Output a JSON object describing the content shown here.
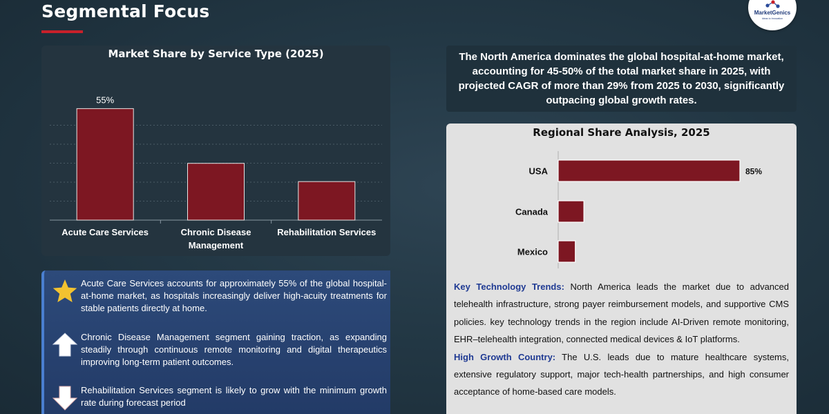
{
  "header": {
    "title": "Segmental Focus",
    "logo_text": "MarketGenics",
    "logo_tagline": "Ideas to Innovation"
  },
  "colors": {
    "accent_red": "#c8202a",
    "bar_fill": "#7d1722",
    "label_blue": "#1f3a93"
  },
  "service_chart": {
    "title": "Market Share by Service Type (2025)",
    "chart_data": {
      "type": "bar",
      "title": "Market Share by Service Type (2025)",
      "categories": [
        "Acute Care Services",
        "Chronic Disease Management",
        "Rehabilitation Services"
      ],
      "category_lines": [
        [
          "Acute Care Services"
        ],
        [
          "Chronic Disease",
          "Management"
        ],
        [
          "Rehabilitation Services"
        ]
      ],
      "values": [
        55,
        28,
        19
      ],
      "data_labels": [
        "55%",
        "",
        ""
      ],
      "ylim": [
        0,
        65
      ],
      "grid": true
    }
  },
  "bullets": [
    {
      "icon": "star-icon",
      "text": "Acute Care Services accounts for approximately 55% of the global hospital-at-home market, as hospitals increasingly deliver high-acuity treatments for stable patients directly at home."
    },
    {
      "icon": "arrow-up-icon",
      "text": "Chronic Disease Management segment gaining traction, as expanding steadily through continuous remote monitoring and digital therapeutics improving long-term patient outcomes."
    },
    {
      "icon": "arrow-down-icon",
      "text": "Rehabilitation Services segment is likely to grow with the minimum growth rate during forecast period"
    }
  ],
  "summary": {
    "text": "The North America dominates the global hospital-at-home market, accounting for 45-50% of the total market share in 2025, with projected CAGR of more than 29% from 2025 to 2030, significantly outpacing global growth rates."
  },
  "regional_chart": {
    "title": "Regional Share Analysis, 2025",
    "chart_data": {
      "type": "bar",
      "orientation": "horizontal",
      "title": "Regional Share Analysis, 2025",
      "categories": [
        "USA",
        "Canada",
        "Mexico"
      ],
      "values": [
        85,
        12,
        8
      ],
      "data_labels": [
        "85%",
        "",
        ""
      ],
      "xlim": [
        0,
        100
      ]
    }
  },
  "insights": [
    {
      "label": "Key Technology Trends:",
      "text": " North America leads the market due to advanced telehealth infrastructure, strong payer reimbursement models, and supportive CMS policies. key technology trends in the region include AI-Driven remote monitoring, EHR–telehealth integration, connected medical devices & IoT platforms."
    },
    {
      "label": "High Growth Country:",
      "text": " The U.S. leads due to mature healthcare systems, extensive regulatory support, major tech-health partnerships, and high consumer acceptance of home-based care models."
    }
  ]
}
